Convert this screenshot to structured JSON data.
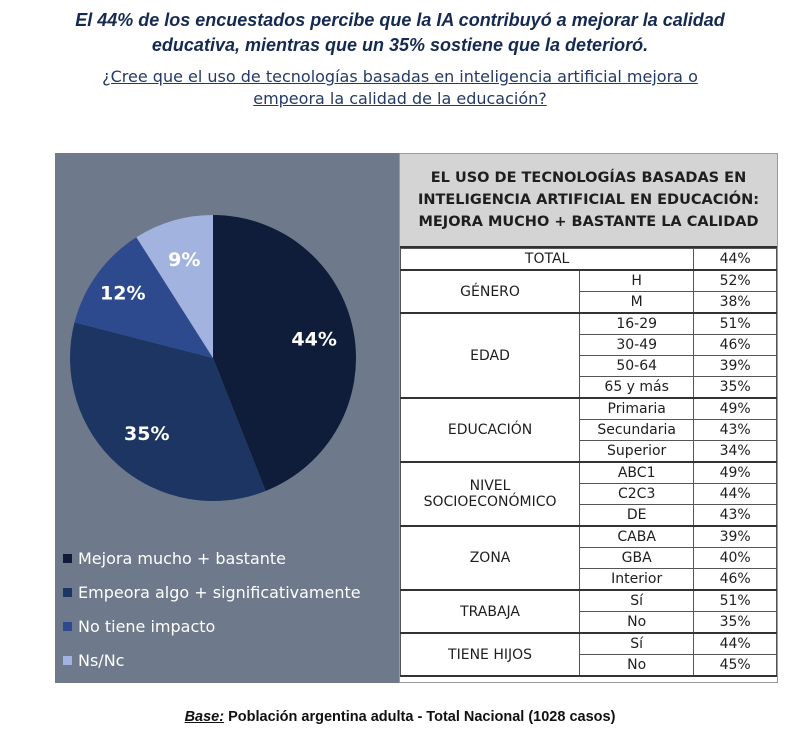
{
  "headline": {
    "line1": "El 44% de los encuestados percibe que la IA contribuyó a mejorar la calidad",
    "line2": "educativa, mientras que un 35% sostiene que la deterioró."
  },
  "question": {
    "line1": "¿Cree que el uso de tecnologías basadas en inteligencia artificial mejora o",
    "line2": "empeora la calidad de la educación?"
  },
  "colors": {
    "panel": "#6e7a8c",
    "mejora": "#0f1d3a",
    "empeora": "#1c3562",
    "no_impacto": "#2e4a8e",
    "nsnc": "#a3b3e0"
  },
  "chart_data": [
    {
      "type": "pie",
      "slices": [
        {
          "label": "Mejora mucho + bastante",
          "value": 44,
          "display": "44%"
        },
        {
          "label": "Empeora algo + significativamente",
          "value": 35,
          "display": "35%"
        },
        {
          "label": "No tiene impacto",
          "value": 12,
          "display": "12%"
        },
        {
          "label": "Ns/Nc",
          "value": 9,
          "display": "9%"
        }
      ],
      "legend": "bottom-left"
    },
    {
      "type": "table",
      "title_lines": [
        "EL USO DE TECNOLOGÍAS BASADAS EN",
        "INTELIGENCIA ARTIFICIAL EN EDUCACIÓN:",
        "MEJORA MUCHO + BASTANTE LA CALIDAD"
      ],
      "total": {
        "label": "TOTAL",
        "value": "44%"
      },
      "groups": [
        {
          "lines": [
            "GÉNERO"
          ],
          "rows": [
            {
              "label": "H",
              "value": "52%"
            },
            {
              "label": "M",
              "value": "38%"
            }
          ]
        },
        {
          "lines": [
            "EDAD"
          ],
          "rows": [
            {
              "label": "16-29",
              "value": "51%"
            },
            {
              "label": "30-49",
              "value": "46%"
            },
            {
              "label": "50-64",
              "value": "39%"
            },
            {
              "label": "65 y más",
              "value": "35%"
            }
          ]
        },
        {
          "lines": [
            "EDUCACIÓN"
          ],
          "rows": [
            {
              "label": "Primaria",
              "value": "49%"
            },
            {
              "label": "Secundaria",
              "value": "43%"
            },
            {
              "label": "Superior",
              "value": "34%"
            }
          ]
        },
        {
          "lines": [
            "NIVEL",
            "SOCIOECONÓMICO"
          ],
          "rows": [
            {
              "label": "ABC1",
              "value": "49%"
            },
            {
              "label": "C2C3",
              "value": "44%"
            },
            {
              "label": "DE",
              "value": "43%"
            }
          ]
        },
        {
          "lines": [
            "ZONA"
          ],
          "rows": [
            {
              "label": "CABA",
              "value": "39%"
            },
            {
              "label": "GBA",
              "value": "40%"
            },
            {
              "label": "Interior",
              "value": "46%"
            }
          ]
        },
        {
          "lines": [
            "TRABAJA"
          ],
          "rows": [
            {
              "label": "Sí",
              "value": "51%"
            },
            {
              "label": "No",
              "value": "35%"
            }
          ]
        },
        {
          "lines": [
            "TIENE HIJOS"
          ],
          "rows": [
            {
              "label": "Sí",
              "value": "44%"
            },
            {
              "label": "No",
              "value": "45%"
            }
          ]
        }
      ]
    }
  ],
  "footer": {
    "base_label": "Base:",
    "text": " Población argentina adulta - Total Nacional (1028 casos)"
  }
}
